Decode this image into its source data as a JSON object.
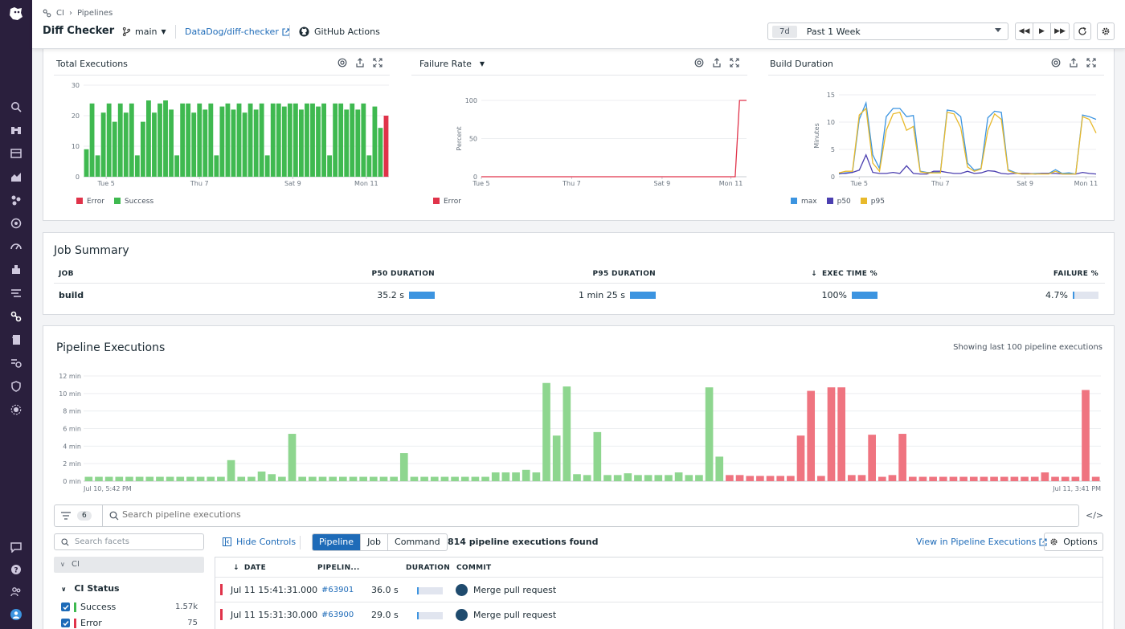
{
  "header": {
    "breadcrumb": [
      "CI",
      "Pipelines"
    ],
    "title": "Diff Checker",
    "branch": "main",
    "repo": "DataDog/diff-checker",
    "provider": "GitHub Actions",
    "time_tag": "7d",
    "time_label": "Past 1 Week"
  },
  "widgets": {
    "total_executions": {
      "title": "Total Executions",
      "legend": [
        "Error",
        "Success"
      ]
    },
    "failure_rate": {
      "title": "Failure Rate",
      "legend": [
        "Error"
      ]
    },
    "build_duration": {
      "title": "Build Duration",
      "legend": [
        "max",
        "p50",
        "p95"
      ]
    }
  },
  "colors": {
    "success": "#3fb950",
    "error": "#e0334a",
    "success_light": "#8ed68f",
    "error_light": "#ef7480",
    "max": "#3c94e0",
    "p50": "#4b3fb0",
    "p95": "#e8b92b"
  },
  "chart_data": [
    {
      "type": "bar",
      "stacked": true,
      "x_ticks": [
        "Tue 5",
        "Thu 7",
        "Sat 9",
        "Mon 11"
      ],
      "ylim": [
        0,
        30
      ],
      "y_ticks": [
        "0",
        "10",
        "20",
        "30"
      ],
      "series": [
        {
          "name": "Success",
          "values": [
            9,
            24,
            7,
            21,
            24,
            18,
            24,
            21,
            24,
            7,
            18,
            25,
            21,
            24,
            25,
            22,
            7,
            24,
            24,
            21,
            24,
            22,
            24,
            7,
            23,
            24,
            22,
            24,
            21,
            24,
            22,
            24,
            7,
            24,
            24,
            23,
            24,
            24,
            22,
            24,
            24,
            23,
            24,
            7,
            24,
            24,
            22,
            24,
            22,
            24,
            7,
            23,
            16,
            0
          ]
        },
        {
          "name": "Error",
          "values": [
            0,
            0,
            0,
            0,
            0,
            0,
            0,
            0,
            0,
            0,
            0,
            0,
            0,
            0,
            0,
            0,
            0,
            0,
            0,
            0,
            0,
            0,
            0,
            0,
            0,
            0,
            0,
            0,
            0,
            0,
            0,
            0,
            0,
            0,
            0,
            0,
            0,
            0,
            0,
            0,
            0,
            0,
            0,
            0,
            0,
            0,
            0,
            0,
            0,
            0,
            0,
            0,
            0,
            20
          ]
        }
      ]
    },
    {
      "type": "line",
      "x_ticks": [
        "Tue 5",
        "Thu 7",
        "Sat 9",
        "Mon 11"
      ],
      "ylabel": "Percent",
      "ylim": [
        0,
        100
      ],
      "y_ticks": [
        "0",
        "50",
        "100"
      ],
      "series": [
        {
          "name": "Error",
          "values": [
            0,
            0,
            0,
            0,
            0,
            0,
            0,
            0,
            0,
            0,
            0,
            0,
            0,
            0,
            0,
            0,
            0,
            0,
            0,
            0,
            0,
            0,
            0,
            0,
            0,
            0,
            0,
            0,
            0,
            0,
            0,
            0,
            0,
            0,
            0,
            0,
            0,
            0,
            0,
            0,
            0,
            0,
            0,
            0,
            0,
            0,
            0,
            0,
            0,
            0,
            0,
            0,
            0,
            0,
            0,
            0,
            0,
            0,
            0,
            0,
            100,
            100,
            100
          ]
        }
      ]
    },
    {
      "type": "line",
      "x_ticks": [
        "Tue 5",
        "Thu 7",
        "Sat 9",
        "Mon 11"
      ],
      "ylabel": "Minutes",
      "ylim": [
        0,
        15
      ],
      "y_ticks": [
        "0",
        "5",
        "10",
        "15"
      ],
      "series": [
        {
          "name": "max",
          "values": [
            0.5,
            0.7,
            0.8,
            10.5,
            13.5,
            4,
            1.5,
            11,
            12.5,
            12.5,
            11,
            11.2,
            1,
            0.8,
            0.8,
            0.8,
            12.2,
            12,
            11,
            2.5,
            1.2,
            1.5,
            10.8,
            12,
            11.8,
            1.3,
            0.8,
            0.5,
            0.5,
            0.6,
            0.6,
            0.6,
            1.3,
            0.6,
            0.7,
            0.5,
            11.3,
            11,
            10.5
          ]
        },
        {
          "name": "p50",
          "values": [
            0.6,
            0.6,
            0.8,
            1.2,
            4,
            0.8,
            0.6,
            0.6,
            0.8,
            0.6,
            2,
            0.6,
            0.5,
            0.5,
            1,
            1,
            0.8,
            0.6,
            0.6,
            1,
            0.6,
            0.7,
            1.1,
            1,
            0.6,
            0.5,
            0.6,
            0.6,
            0.6,
            0.5,
            0.6,
            0.6,
            0.6,
            0.5,
            0.5,
            0.5,
            0.8,
            0.6,
            0.5
          ]
        },
        {
          "name": "p95",
          "values": [
            0.7,
            1,
            1,
            11.3,
            12.5,
            2.5,
            1,
            8.5,
            11.5,
            11.8,
            8.5,
            9.2,
            0.9,
            0.7,
            0.7,
            0.7,
            11.8,
            11.5,
            9,
            1.8,
            1,
            1.4,
            8.5,
            11.5,
            10.5,
            1.1,
            0.7,
            0.5,
            0.5,
            0.5,
            0.5,
            0.5,
            1,
            0.5,
            0.5,
            0.5,
            11,
            10.5,
            8
          ]
        }
      ]
    },
    {
      "type": "bar",
      "x_ticks": [
        "Jul 10, 5:42 PM",
        "Jul 11, 3:41 PM"
      ],
      "ylim": [
        0,
        12
      ],
      "y_ticks": [
        "0 min",
        "2 min",
        "4 min",
        "6 min",
        "8 min",
        "10 min",
        "12 min"
      ],
      "series": [
        {
          "name": "Success",
          "values": [
            0.5,
            0.5,
            0.5,
            0.5,
            0.5,
            0.5,
            0.5,
            0.5,
            0.5,
            0.5,
            0.5,
            0.5,
            0.5,
            0.5,
            2.4,
            0.5,
            0.5,
            1.1,
            0.8,
            0.5,
            5.4,
            0.5,
            0.5,
            0.5,
            0.5,
            0.5,
            0.5,
            0.5,
            0.5,
            0.5,
            0.5,
            3.2,
            0.5,
            0.5,
            0.5,
            0.5,
            0.5,
            0.5,
            0.5,
            0.5,
            1,
            1,
            1,
            1.3,
            1,
            11.2,
            5.2,
            10.8,
            0.8,
            0.7,
            5.6,
            0.7,
            0.7,
            0.9,
            0.7,
            0.7,
            0.7,
            0.7,
            1,
            0.7,
            0.7,
            10.7,
            2.8,
            0,
            0,
            0,
            0,
            0,
            0,
            0,
            0,
            0,
            0,
            0,
            0,
            0,
            0,
            0,
            0,
            0,
            0,
            0,
            0,
            0,
            0,
            0,
            0,
            0,
            0,
            0,
            0,
            0,
            0,
            0,
            0,
            0,
            0,
            0,
            0,
            0
          ]
        },
        {
          "name": "Error",
          "values": [
            0,
            0,
            0,
            0,
            0,
            0,
            0,
            0,
            0,
            0,
            0,
            0,
            0,
            0,
            0,
            0,
            0,
            0,
            0,
            0,
            0,
            0,
            0,
            0,
            0,
            0,
            0,
            0,
            0,
            0,
            0,
            0,
            0,
            0,
            0,
            0,
            0,
            0,
            0,
            0,
            0,
            0,
            0,
            0,
            0,
            0,
            0,
            0,
            0,
            0,
            0,
            0,
            0,
            0,
            0,
            0,
            0,
            0,
            0,
            0,
            0,
            0,
            0,
            0.7,
            0.7,
            0.6,
            0.6,
            0.6,
            0.6,
            0.6,
            5.2,
            10.3,
            0.6,
            10.7,
            10.7,
            0.7,
            0.7,
            5.3,
            0.5,
            0.7,
            5.4,
            0.5,
            0.5,
            0.5,
            0.5,
            0.5,
            0.5,
            0.5,
            0.5,
            0.5,
            0.5,
            0.5,
            0.5,
            0.5,
            1,
            0.5,
            0.5,
            0.5,
            10.4,
            0.5,
            0.5,
            0.5
          ]
        }
      ]
    }
  ],
  "job_summary": {
    "title": "Job Summary",
    "headers": [
      "JOB",
      "P50 DURATION",
      "P95 DURATION",
      "EXEC TIME %",
      "FAILURE %"
    ],
    "sort_arrow": "↓",
    "rows": [
      {
        "job": "build",
        "p50": "35.2 s",
        "p95": "1 min 25 s",
        "exec": "100%",
        "failure": "4.7%",
        "failure_pct": 4.7
      }
    ]
  },
  "pipeline_executions": {
    "title": "Pipeline Executions",
    "note": "Showing last 100 pipeline executions",
    "filter_count": "6",
    "search_placeholder": "Search pipeline executions",
    "code_label": "</>",
    "facet_placeholder": "Search facets",
    "facet_group": "CI",
    "facet_header": "CI Status",
    "facets": [
      {
        "label": "Success",
        "count": "1.57k"
      },
      {
        "label": "Error",
        "count": "75"
      }
    ],
    "hide_controls": "Hide Controls",
    "tabs": [
      "Pipeline",
      "Job",
      "Command"
    ],
    "found": "814 pipeline executions found",
    "view_link": "View in Pipeline Executions",
    "options": "Options",
    "columns": [
      "DATE",
      "PIPELIN...",
      "DURATION",
      "COMMIT"
    ],
    "rows": [
      {
        "date": "Jul 11 15:41:31.000",
        "id": "#63901",
        "duration": "36.0 s",
        "commit": "Merge pull request"
      },
      {
        "date": "Jul 11 15:31:30.000",
        "id": "#63900",
        "duration": "29.0 s",
        "commit": "Merge pull request"
      }
    ]
  }
}
